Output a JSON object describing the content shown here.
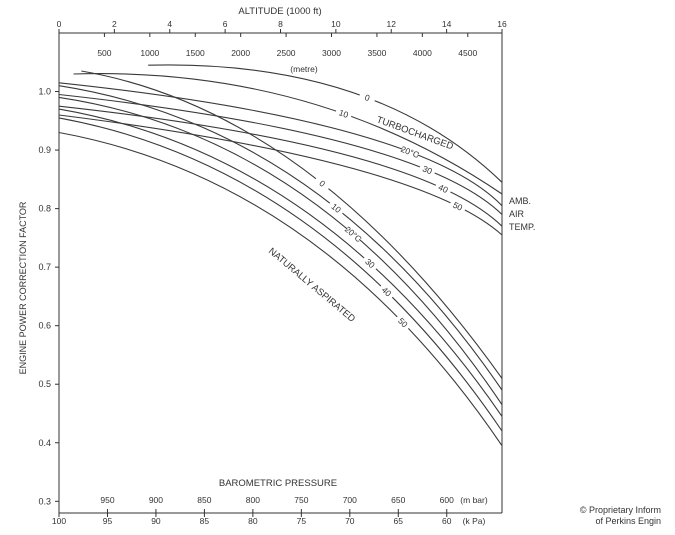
{
  "chart_data": {
    "type": "line",
    "title": "ALTITUDE (1000 ft)",
    "ylabel": "ENGINE POWER CORRECTION FACTOR",
    "xlabel": "BAROMETRIC PRESSURE",
    "xlim": [
      100,
      54.3
    ],
    "ylim": [
      0.28,
      1.1
    ],
    "y_ticks": [
      "0.3",
      "0.4",
      "0.5",
      "0.6",
      "0.7",
      "0.8",
      "0.9",
      "1.0"
    ],
    "x_ticks_kpa": {
      "unit": "(k Pa)",
      "values": [
        100,
        95,
        90,
        85,
        80,
        75,
        70,
        65,
        60
      ]
    },
    "x_ticks_mbar": {
      "unit": "(m bar)",
      "values": [
        950,
        900,
        850,
        800,
        750,
        700,
        650,
        600
      ]
    },
    "top_ticks_ft": {
      "values": [
        0,
        2,
        4,
        6,
        8,
        10,
        12,
        14,
        16
      ]
    },
    "top_ticks_m": {
      "unit": "(metre)",
      "values": [
        500,
        1000,
        1500,
        2000,
        2500,
        3000,
        3500,
        4000,
        4500
      ]
    },
    "groups": [
      {
        "label": "TURBOCHARGED",
        "series": [
          {
            "name": "0",
            "x": [
              90.8,
              70,
              54.3
            ],
            "y": [
              1.045,
              1.0,
              0.845
            ]
          },
          {
            "name": "10",
            "x": [
              98.5,
              75,
              54.3
            ],
            "y": [
              1.03,
              0.985,
              0.825
            ]
          },
          {
            "name": "20°C",
            "x": [
              100,
              70,
              54.3
            ],
            "y": [
              1.015,
              0.93,
              0.805
            ]
          },
          {
            "name": "30",
            "x": [
              100,
              70,
              54.3
            ],
            "y": [
              0.995,
              0.91,
              0.79
            ]
          },
          {
            "name": "40",
            "x": [
              100,
              70,
              54.3
            ],
            "y": [
              0.975,
              0.89,
              0.77
            ]
          },
          {
            "name": "50",
            "x": [
              100,
              70,
              54.3
            ],
            "y": [
              0.96,
              0.87,
              0.755
            ]
          }
        ]
      },
      {
        "label": "NATURALLY ASPIRATED",
        "series": [
          {
            "name": "0",
            "x": [
              97.7,
              75,
              54.3
            ],
            "y": [
              1.035,
              0.87,
              0.51
            ]
          },
          {
            "name": "10",
            "x": [
              100,
              75,
              54.3
            ],
            "y": [
              1.01,
              0.845,
              0.49
            ]
          },
          {
            "name": "20°C",
            "x": [
              100,
              75,
              54.3
            ],
            "y": [
              0.99,
              0.825,
              0.465
            ]
          },
          {
            "name": "30",
            "x": [
              100,
              75,
              54.3
            ],
            "y": [
              0.97,
              0.8,
              0.445
            ]
          },
          {
            "name": "40",
            "x": [
              100,
              75,
              54.3
            ],
            "y": [
              0.955,
              0.78,
              0.42
            ]
          },
          {
            "name": "50",
            "x": [
              100,
              75,
              54.3
            ],
            "y": [
              0.93,
              0.755,
              0.395
            ]
          }
        ]
      }
    ],
    "side_label": [
      "AMB.",
      "AIR",
      "TEMP."
    ]
  },
  "copyright": [
    "© Proprietary Inform",
    "of Perkins Engin"
  ]
}
